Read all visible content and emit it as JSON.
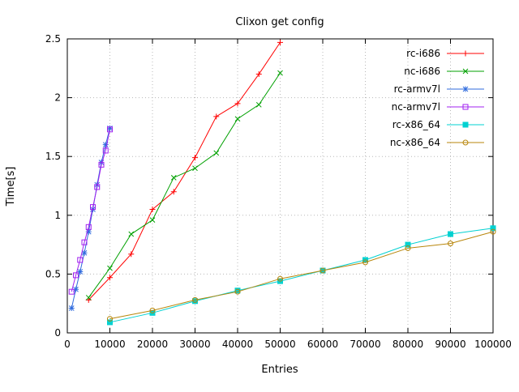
{
  "chart_data": {
    "type": "line",
    "title": "Clixon get config",
    "xlabel": "Entries",
    "ylabel": "Time[s]",
    "xlim": [
      0,
      100000
    ],
    "ylim": [
      0,
      2.5
    ],
    "x_ticks": [
      0,
      10000,
      20000,
      30000,
      40000,
      50000,
      60000,
      70000,
      80000,
      90000,
      100000
    ],
    "y_ticks": [
      0,
      0.5,
      1,
      1.5,
      2,
      2.5
    ],
    "grid": true,
    "legend_position": "top-right",
    "series": [
      {
        "name": "rc-i686",
        "color": "#ff0000",
        "marker": "plus",
        "points": [
          [
            5000,
            0.28
          ],
          [
            10000,
            0.47
          ],
          [
            15000,
            0.67
          ],
          [
            20000,
            1.05
          ],
          [
            25000,
            1.2
          ],
          [
            30000,
            1.49
          ],
          [
            35000,
            1.84
          ],
          [
            40000,
            1.95
          ],
          [
            45000,
            2.2
          ],
          [
            50000,
            2.47
          ]
        ]
      },
      {
        "name": "nc-i686",
        "color": "#00a000",
        "marker": "cross",
        "points": [
          [
            5000,
            0.3
          ],
          [
            10000,
            0.55
          ],
          [
            15000,
            0.84
          ],
          [
            20000,
            0.96
          ],
          [
            25000,
            1.32
          ],
          [
            30000,
            1.4
          ],
          [
            35000,
            1.53
          ],
          [
            40000,
            1.82
          ],
          [
            45000,
            1.94
          ],
          [
            50000,
            2.21
          ]
        ]
      },
      {
        "name": "rc-armv7l",
        "color": "#2f6bde",
        "marker": "asterisk",
        "points": [
          [
            1000,
            0.21
          ],
          [
            2000,
            0.37
          ],
          [
            3000,
            0.52
          ],
          [
            4000,
            0.68
          ],
          [
            5000,
            0.86
          ],
          [
            6000,
            1.05
          ],
          [
            7000,
            1.26
          ],
          [
            8000,
            1.45
          ],
          [
            9000,
            1.6
          ],
          [
            10000,
            1.74
          ]
        ]
      },
      {
        "name": "nc-armv7l",
        "color": "#a020f0",
        "marker": "square-open",
        "points": [
          [
            1000,
            0.35
          ],
          [
            2000,
            0.49
          ],
          [
            3000,
            0.62
          ],
          [
            4000,
            0.77
          ],
          [
            5000,
            0.9
          ],
          [
            6000,
            1.07
          ],
          [
            7000,
            1.24
          ],
          [
            8000,
            1.43
          ],
          [
            9000,
            1.55
          ],
          [
            10000,
            1.73
          ]
        ]
      },
      {
        "name": "rc-x86_64",
        "color": "#00d1d1",
        "marker": "square-filled",
        "points": [
          [
            10000,
            0.09
          ],
          [
            20000,
            0.17
          ],
          [
            30000,
            0.27
          ],
          [
            40000,
            0.36
          ],
          [
            50000,
            0.44
          ],
          [
            60000,
            0.53
          ],
          [
            70000,
            0.62
          ],
          [
            80000,
            0.75
          ],
          [
            90000,
            0.84
          ],
          [
            100000,
            0.89
          ]
        ]
      },
      {
        "name": "nc-x86_64",
        "color": "#b8860b",
        "marker": "circle-open",
        "points": [
          [
            10000,
            0.12
          ],
          [
            20000,
            0.19
          ],
          [
            30000,
            0.28
          ],
          [
            40000,
            0.35
          ],
          [
            50000,
            0.46
          ],
          [
            60000,
            0.53
          ],
          [
            70000,
            0.6
          ],
          [
            80000,
            0.72
          ],
          [
            90000,
            0.76
          ],
          [
            100000,
            0.86
          ]
        ]
      }
    ]
  }
}
